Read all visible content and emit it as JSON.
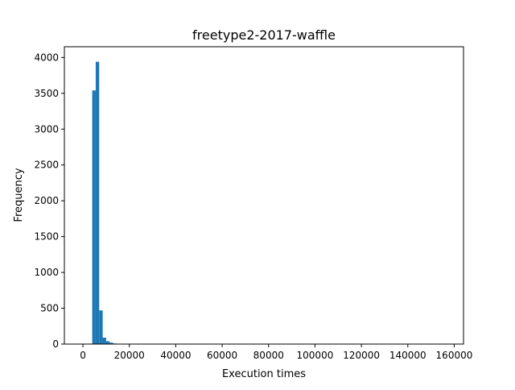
{
  "chart_data": {
    "type": "bar",
    "title": "freetype2-2017-waffle",
    "xlabel": "Execution times",
    "ylabel": "Frequency",
    "xlim": [
      -8000,
      164000
    ],
    "ylim": [
      0,
      4150
    ],
    "x_ticks": [
      0,
      20000,
      40000,
      60000,
      80000,
      100000,
      120000,
      140000,
      160000
    ],
    "y_ticks": [
      0,
      500,
      1000,
      1500,
      2000,
      2500,
      3000,
      3500,
      4000
    ],
    "grid": false,
    "bar_color": "#1f77b4",
    "bin_width": 1500,
    "bins": [
      {
        "x0": 4000,
        "x1": 5500,
        "value": 3540
      },
      {
        "x0": 5500,
        "x1": 7000,
        "value": 3940
      },
      {
        "x0": 7000,
        "x1": 8500,
        "value": 470
      },
      {
        "x0": 8500,
        "x1": 10000,
        "value": 90
      },
      {
        "x0": 10000,
        "x1": 11500,
        "value": 40
      },
      {
        "x0": 11500,
        "x1": 13000,
        "value": 20
      },
      {
        "x0": 13000,
        "x1": 14500,
        "value": 8
      },
      {
        "x0": 14500,
        "x1": 16000,
        "value": 4
      },
      {
        "x0": 16000,
        "x1": 17500,
        "value": 2
      }
    ]
  }
}
